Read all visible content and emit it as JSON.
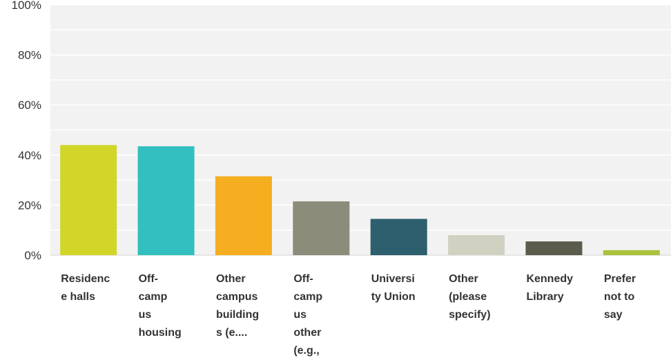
{
  "chart_data": {
    "type": "bar",
    "categories": [
      "Residence halls",
      "Off-campus housing",
      "Other campus buildings (e....",
      "Off-campus other (e.g.,",
      "University Union",
      "Other (please specify)",
      "Kennedy Library",
      "Prefer not to say"
    ],
    "category_lines": [
      [
        "Residenc",
        "e halls"
      ],
      [
        "Off-",
        "camp",
        "us",
        "housing"
      ],
      [
        "Other",
        "campus",
        "building",
        "s (e...."
      ],
      [
        "Off-",
        "camp",
        "us",
        "other",
        "(e.g.,"
      ],
      [
        "Universi",
        "ty Union"
      ],
      [
        "Other",
        "(please",
        "specify)"
      ],
      [
        "Kennedy",
        "Library"
      ],
      [
        "Prefer",
        "not to",
        "say"
      ]
    ],
    "values": [
      44,
      43.5,
      31.5,
      21.5,
      14.5,
      8,
      5.5,
      2
    ],
    "colors": [
      "#D1D629",
      "#33BFBF",
      "#F5AE1F",
      "#8C8C7A",
      "#2E5F6E",
      "#D1D1C2",
      "#5C5C4D",
      "#A8C23B"
    ],
    "ylim": [
      0,
      100
    ],
    "yticks": [
      0,
      20,
      40,
      60,
      80,
      100
    ],
    "ytick_labels": [
      "0%",
      "20%",
      "40%",
      "60%",
      "80%",
      "100%"
    ],
    "title": "",
    "xlabel": "",
    "ylabel": "",
    "grid": true,
    "plot_background": "#F2F2F2"
  }
}
